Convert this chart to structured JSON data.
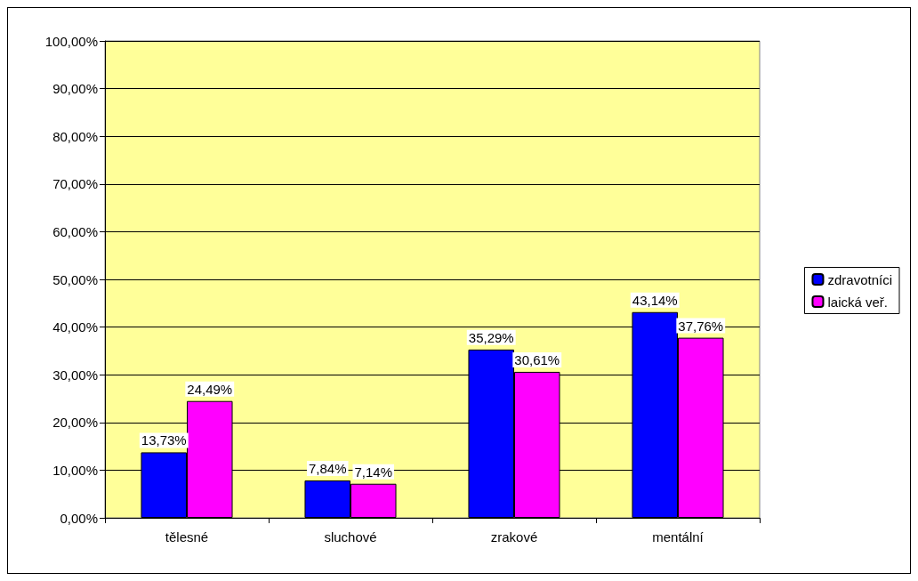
{
  "chart_data": {
    "type": "bar",
    "categories": [
      "tělesné",
      "sluchové",
      "zrakové",
      "mentální"
    ],
    "series": [
      {
        "name": "zdravotníci",
        "color": "#0000ff",
        "values": [
          13.73,
          7.84,
          35.29,
          43.14
        ],
        "value_labels": [
          "13,73%",
          "7,84%",
          "35,29%",
          "43,14%"
        ]
      },
      {
        "name": "laická veř.",
        "color": "#ff00ff",
        "values": [
          24.49,
          7.14,
          30.61,
          37.76
        ],
        "value_labels": [
          "24,49%",
          "7,14%",
          "30,61%",
          "37,76%"
        ]
      }
    ],
    "ylim": [
      0,
      100
    ],
    "yticks": [
      {
        "value": 0,
        "label": "0,00%"
      },
      {
        "value": 10,
        "label": "10,00%"
      },
      {
        "value": 20,
        "label": "20,00%"
      },
      {
        "value": 30,
        "label": "30,00%"
      },
      {
        "value": 40,
        "label": "40,00%"
      },
      {
        "value": 50,
        "label": "50,00%"
      },
      {
        "value": 60,
        "label": "60,00%"
      },
      {
        "value": 70,
        "label": "70,00%"
      },
      {
        "value": 80,
        "label": "80,00%"
      },
      {
        "value": 90,
        "label": "90,00%"
      },
      {
        "value": 100,
        "label": "100,00%"
      }
    ],
    "grid": "y",
    "legend": "right"
  }
}
